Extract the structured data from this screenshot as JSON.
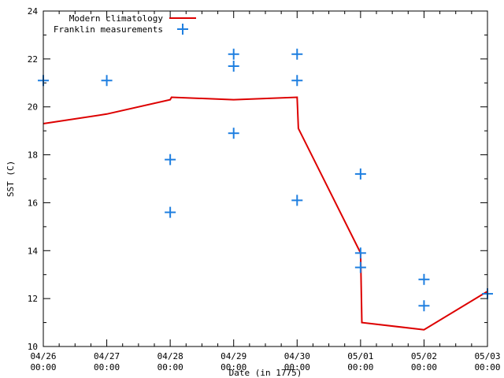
{
  "chart_data": {
    "type": "line",
    "xlabel": "Date (in 1775)",
    "ylabel": "SST (C)",
    "xlim": [
      "04/26 00:00",
      "05/03 00:00"
    ],
    "ylim": [
      10,
      24
    ],
    "yticks": [
      10,
      12,
      14,
      16,
      18,
      20,
      22,
      24
    ],
    "xticks": [
      {
        "date": "04/26",
        "time": "00:00",
        "day": 0
      },
      {
        "date": "04/27",
        "time": "00:00",
        "day": 1
      },
      {
        "date": "04/28",
        "time": "00:00",
        "day": 2
      },
      {
        "date": "04/29",
        "time": "00:00",
        "day": 3
      },
      {
        "date": "04/30",
        "time": "00:00",
        "day": 4
      },
      {
        "date": "05/01",
        "time": "00:00",
        "day": 5
      },
      {
        "date": "05/02",
        "time": "00:00",
        "day": 6
      },
      {
        "date": "05/03",
        "time": "00:00",
        "day": 7
      }
    ],
    "legend_position": "top-left",
    "series": [
      {
        "name": "Modern climatology",
        "style": "line",
        "color": "#dd0000",
        "points": [
          {
            "day": 0.0,
            "y": 19.3
          },
          {
            "day": 1.0,
            "y": 19.7
          },
          {
            "day": 2.0,
            "y": 20.3
          },
          {
            "day": 2.02,
            "y": 20.4
          },
          {
            "day": 3.0,
            "y": 20.3
          },
          {
            "day": 4.0,
            "y": 20.4
          },
          {
            "day": 4.02,
            "y": 19.1
          },
          {
            "day": 5.0,
            "y": 13.9
          },
          {
            "day": 5.02,
            "y": 11.0
          },
          {
            "day": 6.0,
            "y": 10.7
          },
          {
            "day": 7.0,
            "y": 12.3
          }
        ]
      },
      {
        "name": "Franklin measurements",
        "style": "points",
        "color": "#1f7fe0",
        "points": [
          {
            "day": 0.0,
            "y": 21.1
          },
          {
            "day": 1.0,
            "y": 21.1
          },
          {
            "day": 2.0,
            "y": 17.8
          },
          {
            "day": 2.0,
            "y": 15.6
          },
          {
            "day": 3.0,
            "y": 22.2
          },
          {
            "day": 3.0,
            "y": 21.7
          },
          {
            "day": 3.0,
            "y": 18.9
          },
          {
            "day": 4.0,
            "y": 22.2
          },
          {
            "day": 4.0,
            "y": 21.1
          },
          {
            "day": 4.0,
            "y": 16.1
          },
          {
            "day": 5.0,
            "y": 17.2
          },
          {
            "day": 5.0,
            "y": 13.9
          },
          {
            "day": 5.0,
            "y": 13.3
          },
          {
            "day": 6.0,
            "y": 12.8
          },
          {
            "day": 6.0,
            "y": 11.7
          },
          {
            "day": 7.0,
            "y": 12.2
          }
        ]
      }
    ]
  }
}
